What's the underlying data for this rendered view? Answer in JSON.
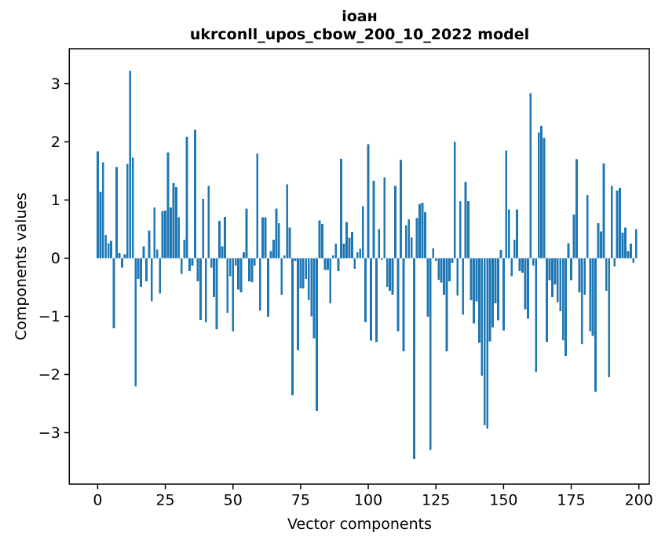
{
  "figure": {
    "title_line1": "іоан",
    "title_line2": "ukrconll_upos_cbow_200_10_2022 model"
  },
  "chart_data": {
    "type": "bar",
    "title": "іоан\nukrconll_upos_cbow_200_10_2022 model",
    "xlabel": "Vector components",
    "ylabel": "Components values",
    "x_tick_labels": [
      "0",
      "25",
      "50",
      "75",
      "100",
      "125",
      "150",
      "175",
      "200"
    ],
    "x_tick_values": [
      0,
      25,
      50,
      75,
      100,
      125,
      150,
      175,
      200
    ],
    "y_tick_labels": [
      "3",
      "2",
      "1",
      "0",
      "−1",
      "−2",
      "−3"
    ],
    "y_tick_values": [
      3,
      2,
      1,
      0,
      -1,
      -2,
      -3
    ],
    "ylim": [
      -3.88,
      3.6
    ],
    "xlim": [
      -10.5,
      203.9
    ],
    "grid": false,
    "legend": null,
    "bar_color": "#1f77b4",
    "n_bars": 200,
    "x": "0..199",
    "values": [
      1.84,
      1.14,
      1.65,
      0.4,
      0.26,
      0.3,
      -1.2,
      1.57,
      0.09,
      -0.16,
      0.07,
      1.62,
      3.22,
      1.73,
      -2.2,
      -0.36,
      -0.49,
      0.2,
      -0.4,
      0.47,
      -0.74,
      0.87,
      0.15,
      -0.61,
      0.81,
      0.82,
      1.82,
      0.87,
      1.29,
      1.22,
      0.7,
      -0.27,
      0.32,
      2.09,
      -0.22,
      -0.13,
      2.21,
      -0.4,
      -1.06,
      1.02,
      -1.1,
      1.24,
      -0.16,
      -0.67,
      -1.22,
      0.64,
      0.2,
      0.71,
      -0.94,
      -0.31,
      -1.26,
      -0.13,
      -0.54,
      -0.59,
      0.1,
      0.85,
      -0.4,
      -0.41,
      -0.13,
      1.8,
      -0.9,
      0.7,
      0.7,
      -1.01,
      0.12,
      0.32,
      0.85,
      0.6,
      -0.63,
      0.05,
      1.27,
      0.53,
      -2.36,
      -0.05,
      -1.58,
      -0.52,
      -0.52,
      -0.36,
      -0.72,
      -1.0,
      -1.38,
      -2.63,
      0.65,
      0.59,
      -0.2,
      -0.2,
      -0.78,
      0.05,
      0.25,
      -0.22,
      1.71,
      0.25,
      0.62,
      0.35,
      0.45,
      -0.18,
      0.1,
      0.16,
      0.89,
      -1.1,
      1.96,
      -1.42,
      1.33,
      -1.44,
      0.5,
      -0.03,
      1.39,
      -0.49,
      -0.56,
      -0.63,
      1.24,
      -1.26,
      1.69,
      -1.6,
      0.57,
      0.67,
      0.36,
      -3.45,
      0.69,
      0.93,
      0.95,
      0.79,
      -1.01,
      -3.3,
      0.17,
      -0.05,
      -0.37,
      -0.42,
      -0.63,
      -1.6,
      -0.4,
      -0.08,
      2.0,
      -0.64,
      0.98,
      -0.97,
      1.31,
      0.98,
      -0.72,
      -1.12,
      -0.74,
      -1.45,
      -2.02,
      -2.87,
      -2.93,
      -1.43,
      -1.19,
      -0.78,
      -1.07,
      0.14,
      -1.24,
      1.85,
      0.84,
      -0.31,
      0.32,
      0.84,
      -0.22,
      -0.25,
      -0.88,
      -1.04,
      2.84,
      -0.13,
      -1.96,
      2.16,
      2.28,
      2.07,
      -1.44,
      -0.38,
      -0.67,
      -0.45,
      -0.76,
      -0.91,
      -1.41,
      -1.68,
      0.26,
      -0.38,
      0.75,
      1.7,
      -0.59,
      -1.48,
      -0.63,
      1.09,
      -1.26,
      -1.34,
      -2.3,
      0.6,
      0.46,
      1.63,
      -0.56,
      -2.05,
      1.24,
      -0.14,
      1.16,
      1.21,
      0.44,
      0.53,
      0.12,
      0.25,
      -0.08,
      0.5
    ]
  }
}
